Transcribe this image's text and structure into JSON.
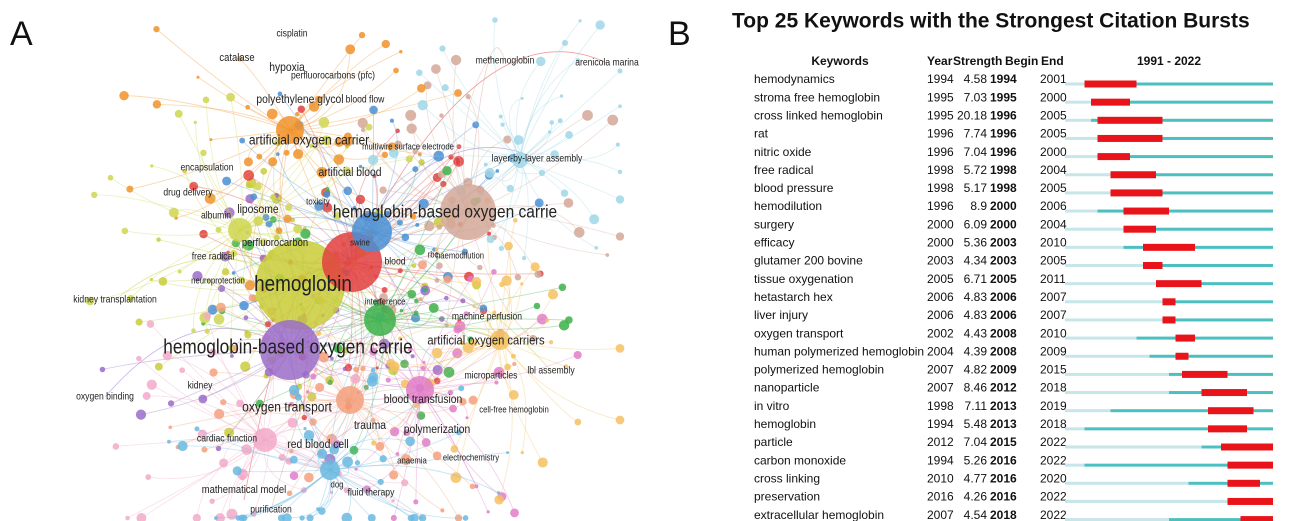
{
  "panel_a": {
    "label": "A",
    "nodes": [
      "cisplatin",
      "catalase",
      "hypoxia",
      "perfluorocarbons (pfc)",
      "methemoglobin",
      "arenicola marina",
      "polyethylene glycol",
      "blood flow",
      "artificial oxygen carrier",
      "multiwire surface electrode",
      "layer-by-layer assembly",
      "encapsulation",
      "artificial blood",
      "drug delivery",
      "toxicity",
      "hemoglobin-based oxygen carrie",
      "liposome",
      "albumin",
      "perfluorocarbon",
      "swine",
      "free radical",
      "blood",
      "rbc",
      "haemodilution",
      "neuroprotection",
      "hemoglobin",
      "kidney transplantation",
      "interference",
      "machine perfusion",
      "artificial oxygen carriers",
      "hemoglobin-based oxygen carrie",
      "lbl assembly",
      "microparticles",
      "kidney",
      "oxygen binding",
      "oxygen transport",
      "blood transfusion",
      "cell-free hemoglobin",
      "trauma",
      "polymerization",
      "cardiac function",
      "red blood cell",
      "anaemia",
      "electrochemistry",
      "mathematical model",
      "dog",
      "fluid therapy",
      "purification"
    ]
  },
  "panel_b": {
    "label": "B",
    "title": "Top 25 Keywords with the Strongest Citation Bursts",
    "columns": {
      "keyword": "Keywords",
      "year": "Year",
      "strength": "Strength",
      "begin": "Begin",
      "end": "End",
      "range": "1991 - 2022"
    },
    "xlim": [
      1991,
      2022
    ],
    "rows": [
      {
        "keyword": "hemodynamics",
        "year": 1994,
        "strength": 4.58,
        "begin": 1994,
        "end": 2001
      },
      {
        "keyword": "stroma free hemoglobin",
        "year": 1995,
        "strength": 7.03,
        "begin": 1995,
        "end": 2000
      },
      {
        "keyword": "cross linked hemoglobin",
        "year": 1995,
        "strength": 20.18,
        "begin": 1996,
        "end": 2005
      },
      {
        "keyword": "rat",
        "year": 1996,
        "strength": 7.74,
        "begin": 1996,
        "end": 2005
      },
      {
        "keyword": "nitric oxide",
        "year": 1996,
        "strength": 7.04,
        "begin": 1996,
        "end": 2000
      },
      {
        "keyword": "free radical",
        "year": 1998,
        "strength": 5.72,
        "begin": 1998,
        "end": 2004
      },
      {
        "keyword": "blood pressure",
        "year": 1998,
        "strength": 5.17,
        "begin": 1998,
        "end": 2005
      },
      {
        "keyword": "hemodilution",
        "year": 1996,
        "strength": 8.9,
        "begin": 2000,
        "end": 2006
      },
      {
        "keyword": "surgery",
        "year": 2000,
        "strength": 6.09,
        "begin": 2000,
        "end": 2004
      },
      {
        "keyword": "efficacy",
        "year": 2000,
        "strength": 5.36,
        "begin": 2003,
        "end": 2010
      },
      {
        "keyword": "glutamer 200 bovine",
        "year": 2003,
        "strength": 4.34,
        "begin": 2003,
        "end": 2005
      },
      {
        "keyword": "tissue oxygenation",
        "year": 2005,
        "strength": 6.71,
        "begin": 2005,
        "end": 2011
      },
      {
        "keyword": "hetastarch hex",
        "year": 2006,
        "strength": 4.83,
        "begin": 2006,
        "end": 2007
      },
      {
        "keyword": "liver injury",
        "year": 2006,
        "strength": 4.83,
        "begin": 2006,
        "end": 2007
      },
      {
        "keyword": "oxygen transport",
        "year": 2002,
        "strength": 4.43,
        "begin": 2008,
        "end": 2010
      },
      {
        "keyword": "human polymerized hemoglobin",
        "year": 2004,
        "strength": 4.39,
        "begin": 2008,
        "end": 2009
      },
      {
        "keyword": "polymerized hemoglobin",
        "year": 2007,
        "strength": 4.82,
        "begin": 2009,
        "end": 2015
      },
      {
        "keyword": "nanoparticle",
        "year": 2007,
        "strength": 8.46,
        "begin": 2012,
        "end": 2018
      },
      {
        "keyword": "in vitro",
        "year": 1998,
        "strength": 7.11,
        "begin": 2013,
        "end": 2019
      },
      {
        "keyword": "hemoglobin",
        "year": 1994,
        "strength": 5.48,
        "begin": 2013,
        "end": 2018
      },
      {
        "keyword": "particle",
        "year": 2012,
        "strength": 7.04,
        "begin": 2015,
        "end": 2022
      },
      {
        "keyword": "carbon monoxide",
        "year": 1994,
        "strength": 5.26,
        "begin": 2016,
        "end": 2022
      },
      {
        "keyword": "cross linking",
        "year": 2010,
        "strength": 4.77,
        "begin": 2016,
        "end": 2020
      },
      {
        "keyword": "preservation",
        "year": 2016,
        "strength": 4.26,
        "begin": 2016,
        "end": 2022
      },
      {
        "keyword": "extracellular hemoglobin",
        "year": 2007,
        "strength": 4.54,
        "begin": 2018,
        "end": 2022
      }
    ]
  }
}
